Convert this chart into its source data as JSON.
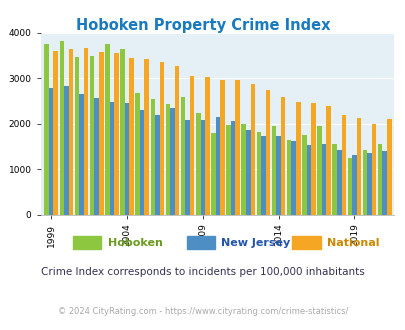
{
  "title": "Hoboken Property Crime Index",
  "subtitle": "Crime Index corresponds to incidents per 100,000 inhabitants",
  "footer": "© 2024 CityRating.com - https://www.cityrating.com/crime-statistics/",
  "years": [
    1999,
    2000,
    2001,
    2002,
    2003,
    2004,
    2005,
    2006,
    2007,
    2008,
    2009,
    2010,
    2011,
    2012,
    2013,
    2014,
    2015,
    2016,
    2017,
    2018,
    2019,
    2020,
    2021
  ],
  "hoboken": [
    3760,
    3820,
    3470,
    3490,
    3760,
    3650,
    2670,
    2540,
    2440,
    2600,
    2240,
    1800,
    1980,
    1990,
    1820,
    1960,
    1650,
    1760,
    1950,
    1560,
    1250,
    1430,
    1560
  ],
  "new_jersey": [
    2780,
    2840,
    2650,
    2560,
    2480,
    2450,
    2310,
    2200,
    2340,
    2090,
    2080,
    2150,
    2050,
    1870,
    1730,
    1720,
    1630,
    1540,
    1560,
    1420,
    1310,
    1350,
    1400
  ],
  "national": [
    3610,
    3640,
    3680,
    3580,
    3560,
    3460,
    3430,
    3360,
    3280,
    3060,
    3040,
    2960,
    2960,
    2870,
    2740,
    2580,
    2490,
    2460,
    2400,
    2200,
    2130,
    1990,
    2100
  ],
  "hoboken_color": "#8dc63f",
  "nj_color": "#4d8fc4",
  "national_color": "#f5a623",
  "bg_color": "#e4f0f6",
  "title_color": "#1a7abf",
  "subtitle_color": "#333355",
  "footer_color": "#aaaaaa",
  "legend_hoboken_color": "#6a9a1f",
  "legend_nj_color": "#2255aa",
  "legend_national_color": "#cc8800",
  "ylim": [
    0,
    4000
  ],
  "yticks": [
    0,
    1000,
    2000,
    3000,
    4000
  ],
  "xlabel_years": [
    1999,
    2004,
    2009,
    2014,
    2019
  ],
  "bar_width": 0.3
}
